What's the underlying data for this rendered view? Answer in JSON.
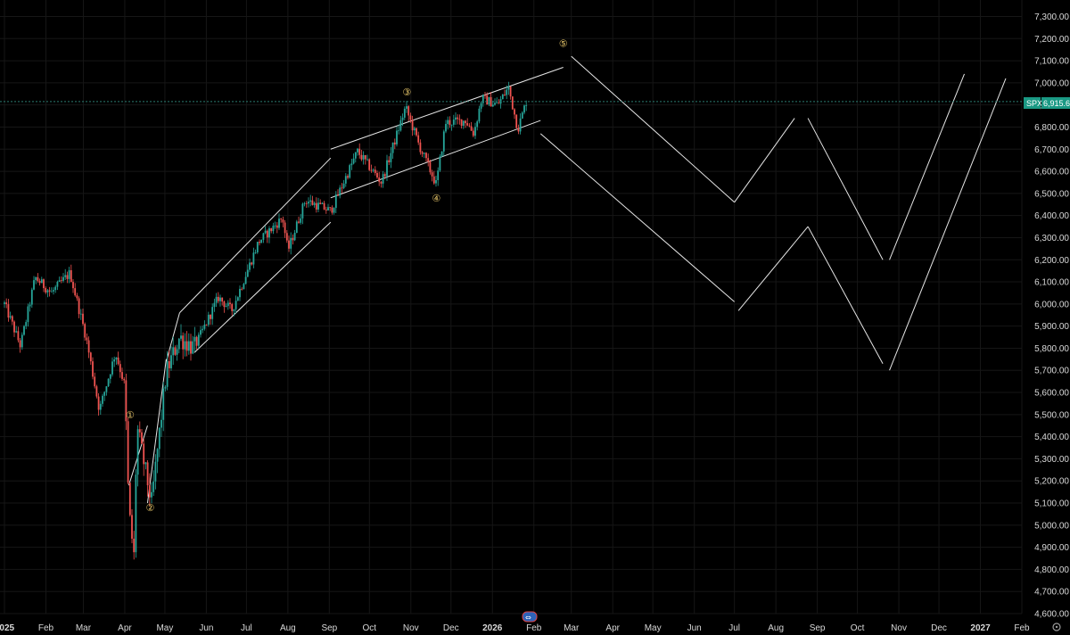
{
  "chart_data": {
    "type": "candlestick",
    "symbol": "SPX",
    "last_price": 6915.61,
    "last_price_label": "6,915.61",
    "y_axis": {
      "min": 4600,
      "max": 7400,
      "ticks": [
        "7,300.00",
        "7,200.00",
        "7,100.00",
        "7,000.00",
        "6,900.00",
        "6,800.00",
        "6,700.00",
        "6,600.00",
        "6,500.00",
        "6,400.00",
        "6,300.00",
        "6,200.00",
        "6,100.00",
        "6,000.00",
        "5,900.00",
        "5,800.00",
        "5,700.00",
        "5,600.00",
        "5,500.00",
        "5,400.00",
        "5,300.00",
        "5,200.00",
        "5,100.00",
        "5,000.00",
        "4,900.00",
        "4,800.00",
        "4,700.00",
        "4,600.00"
      ]
    },
    "x_axis": {
      "ticks": [
        {
          "label": "2025",
          "date": "2025-01-01",
          "bold": true
        },
        {
          "label": "Feb",
          "date": "2025-02-01"
        },
        {
          "label": "Mar",
          "date": "2025-03-01"
        },
        {
          "label": "Apr",
          "date": "2025-04-01"
        },
        {
          "label": "May",
          "date": "2025-05-01"
        },
        {
          "label": "Jun",
          "date": "2025-06-01"
        },
        {
          "label": "Jul",
          "date": "2025-07-01"
        },
        {
          "label": "Aug",
          "date": "2025-08-01"
        },
        {
          "label": "Sep",
          "date": "2025-09-01"
        },
        {
          "label": "Oct",
          "date": "2025-10-01"
        },
        {
          "label": "Nov",
          "date": "2025-11-01"
        },
        {
          "label": "Dec",
          "date": "2025-12-01"
        },
        {
          "label": "2026",
          "date": "2026-01-01",
          "bold": true
        },
        {
          "label": "Feb",
          "date": "2026-02-01"
        },
        {
          "label": "Mar",
          "date": "2026-03-01"
        },
        {
          "label": "Apr",
          "date": "2026-04-01"
        },
        {
          "label": "May",
          "date": "2026-05-01"
        },
        {
          "label": "Jun",
          "date": "2026-06-01"
        },
        {
          "label": "Jul",
          "date": "2026-07-01"
        },
        {
          "label": "Aug",
          "date": "2026-08-01"
        },
        {
          "label": "Sep",
          "date": "2026-09-01"
        },
        {
          "label": "Oct",
          "date": "2026-10-01"
        },
        {
          "label": "Nov",
          "date": "2026-11-01"
        },
        {
          "label": "Dec",
          "date": "2026-12-01"
        },
        {
          "label": "2027",
          "date": "2027-01-01",
          "bold": true
        },
        {
          "label": "Feb",
          "date": "2027-02-01"
        }
      ]
    },
    "price_path": [
      [
        "2025-01-01",
        6000
      ],
      [
        "2025-01-13",
        5810
      ],
      [
        "2025-01-24",
        6120
      ],
      [
        "2025-02-05",
        6050
      ],
      [
        "2025-02-19",
        6140
      ],
      [
        "2025-03-03",
        5850
      ],
      [
        "2025-03-13",
        5520
      ],
      [
        "2025-03-25",
        5780
      ],
      [
        "2025-04-01",
        5630
      ],
      [
        "2025-04-04",
        5070
      ],
      [
        "2025-04-08",
        4850
      ],
      [
        "2025-04-10",
        5450
      ],
      [
        "2025-04-21",
        5100
      ],
      [
        "2025-05-02",
        5690
      ],
      [
        "2025-05-12",
        5850
      ],
      [
        "2025-05-23",
        5800
      ],
      [
        "2025-06-10",
        6030
      ],
      [
        "2025-06-20",
        5970
      ],
      [
        "2025-07-10",
        6280
      ],
      [
        "2025-07-28",
        6390
      ],
      [
        "2025-08-01",
        6240
      ],
      [
        "2025-08-14",
        6470
      ],
      [
        "2025-09-02",
        6420
      ],
      [
        "2025-09-22",
        6690
      ],
      [
        "2025-10-10",
        6550
      ],
      [
        "2025-10-28",
        6890
      ],
      [
        "2025-11-07",
        6720
      ],
      [
        "2025-11-20",
        6540
      ],
      [
        "2025-11-27",
        6820
      ],
      [
        "2025-12-12",
        6830
      ],
      [
        "2025-12-18",
        6770
      ],
      [
        "2025-12-24",
        6930
      ],
      [
        "2026-01-05",
        6900
      ],
      [
        "2026-01-13",
        6980
      ],
      [
        "2026-01-20",
        6790
      ],
      [
        "2026-01-27",
        6930
      ]
    ],
    "wave_labels": [
      {
        "label": "①",
        "date": "2025-04-05",
        "value": 5500
      },
      {
        "label": "②",
        "date": "2025-04-20",
        "value": 5080
      },
      {
        "label": "③",
        "date": "2025-10-29",
        "value": 6960
      },
      {
        "label": "④",
        "date": "2025-11-20",
        "value": 6480
      },
      {
        "label": "⑤",
        "date": "2026-02-23",
        "value": 7180
      }
    ],
    "trendlines": [
      [
        [
          "2025-04-04",
          5180
        ],
        [
          "2025-04-18",
          5450
        ]
      ],
      [
        [
          "2025-04-18",
          5100
        ],
        [
          "2025-05-02",
          5750
        ]
      ],
      [
        [
          "2025-05-02",
          5740
        ],
        [
          "2025-05-12",
          5960
        ]
      ],
      [
        [
          "2025-05-23",
          5780
        ],
        [
          "2025-09-02",
          6370
        ]
      ],
      [
        [
          "2025-05-12",
          5960
        ],
        [
          "2025-09-02",
          6660
        ]
      ],
      [
        [
          "2025-09-02",
          6480
        ],
        [
          "2026-02-06",
          6830
        ]
      ],
      [
        [
          "2025-09-02",
          6700
        ],
        [
          "2026-02-23",
          7070
        ]
      ],
      [
        [
          "2026-03-01",
          7120
        ],
        [
          "2026-07-01",
          6460
        ]
      ],
      [
        [
          "2026-07-01",
          6460
        ],
        [
          "2026-08-15",
          6840
        ]
      ],
      [
        [
          "2026-08-25",
          6840
        ],
        [
          "2026-10-20",
          6200
        ]
      ],
      [
        [
          "2026-10-25",
          6200
        ],
        [
          "2026-12-20",
          7040
        ]
      ],
      [
        [
          "2026-02-06",
          6770
        ],
        [
          "2026-07-01",
          6010
        ]
      ],
      [
        [
          "2026-07-04",
          5970
        ],
        [
          "2026-08-25",
          6350
        ]
      ],
      [
        [
          "2026-08-25",
          6350
        ],
        [
          "2026-10-20",
          5730
        ]
      ],
      [
        [
          "2026-10-25",
          5700
        ],
        [
          "2027-01-20",
          7020
        ]
      ]
    ]
  }
}
